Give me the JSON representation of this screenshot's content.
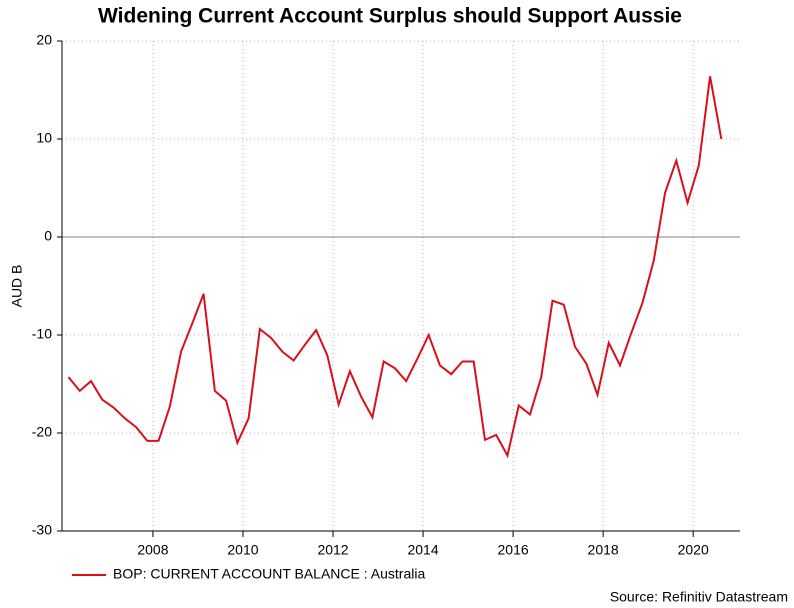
{
  "chart_data": {
    "type": "line",
    "title": "Widening Current Account Surplus should Support Aussie",
    "y_label": "AUD B",
    "source": "Source: Refinitiv Datastream",
    "x": [
      2006.125,
      2006.375,
      2006.625,
      2006.875,
      2007.125,
      2007.375,
      2007.625,
      2007.875,
      2008.125,
      2008.375,
      2008.625,
      2008.875,
      2009.125,
      2009.375,
      2009.625,
      2009.875,
      2010.125,
      2010.375,
      2010.625,
      2010.875,
      2011.125,
      2011.375,
      2011.625,
      2011.875,
      2012.125,
      2012.375,
      2012.625,
      2012.875,
      2013.125,
      2013.375,
      2013.625,
      2013.875,
      2014.125,
      2014.375,
      2014.625,
      2014.875,
      2015.125,
      2015.375,
      2015.625,
      2015.875,
      2016.125,
      2016.375,
      2016.625,
      2016.875,
      2017.125,
      2017.375,
      2017.625,
      2017.875,
      2018.125,
      2018.375,
      2018.625,
      2018.875,
      2019.125,
      2019.375,
      2019.625,
      2019.875,
      2020.125,
      2020.375,
      2020.625
    ],
    "series": [
      {
        "name": "BOP: CURRENT ACCOUNT BALANCE : Australia",
        "color": "#d9101c",
        "values": [
          -14.3,
          -15.7,
          -14.7,
          -16.6,
          -17.4,
          -18.5,
          -19.4,
          -20.8,
          -20.8,
          -17.3,
          -11.7,
          -8.8,
          -5.8,
          -15.7,
          -16.7,
          -21.0,
          -18.5,
          -9.4,
          -10.3,
          -11.7,
          -12.6,
          -11.0,
          -9.5,
          -12.1,
          -17.1,
          -13.7,
          -16.3,
          -18.4,
          -12.7,
          -13.4,
          -14.7,
          -12.4,
          -10.0,
          -13.1,
          -14.0,
          -12.7,
          -12.7,
          -20.7,
          -20.2,
          -22.3,
          -17.2,
          -18.1,
          -14.3,
          -6.5,
          -6.9,
          -11.2,
          -12.9,
          -16.1,
          -10.8,
          -13.1,
          -9.8,
          -6.7,
          -2.4,
          4.5,
          7.8,
          3.5,
          7.3,
          16.4,
          10.0
        ]
      }
    ],
    "xlim": [
      2005.98,
      2021.04
    ],
    "xticks": [
      2008,
      2010,
      2012,
      2014,
      2016,
      2018,
      2020
    ],
    "ylim": [
      -30,
      20
    ],
    "yticks": [
      -30,
      -20,
      -10,
      0,
      10,
      20
    ],
    "grid": true
  }
}
